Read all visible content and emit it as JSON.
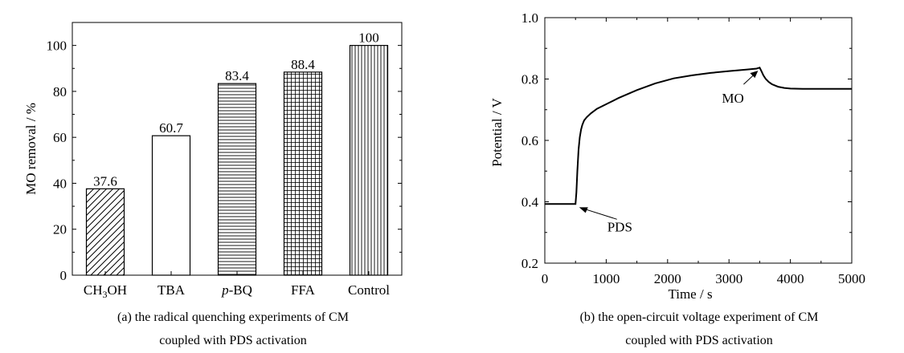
{
  "chart_data": [
    {
      "type": "bar",
      "panel_caption_line1": "(a) the radical quenching experiments of CM",
      "panel_caption_line2": "coupled with PDS activation",
      "ylabel": "MO removal / %",
      "xlabel": "",
      "ylim": [
        0,
        110
      ],
      "yticks": [
        0,
        20,
        40,
        60,
        80,
        100
      ],
      "categories": [
        "CH3OH",
        "TBA",
        "p-BQ",
        "FFA",
        "Control"
      ],
      "category_labels": [
        {
          "main": "CH",
          "sub": "3",
          "rest": "OH"
        },
        {
          "main": "TBA"
        },
        {
          "italic": "p",
          "rest": "-BQ"
        },
        {
          "main": "FFA"
        },
        {
          "main": "Control"
        }
      ],
      "values": [
        37.6,
        60.7,
        83.4,
        88.4,
        100
      ],
      "value_labels": [
        "37.6",
        "60.7",
        "83.4",
        "88.4",
        "100"
      ],
      "patterns": [
        "diagonal-hatch",
        "none",
        "horizontal-lines",
        "grid",
        "vertical-lines"
      ],
      "grid": false
    },
    {
      "type": "line",
      "panel_caption_line1": "(b) the open-circuit voltage experiment of CM",
      "panel_caption_line2": "coupled with PDS activation",
      "xlabel": "Time / s",
      "ylabel": "Potential / V",
      "xlim": [
        0,
        5000
      ],
      "ylim": [
        0.2,
        1.0
      ],
      "xticks": [
        0,
        1000,
        2000,
        3000,
        4000,
        5000
      ],
      "yticks": [
        0.2,
        0.4,
        0.6,
        0.8,
        1.0
      ],
      "ytick_labels": [
        "0.2",
        "0.4",
        "0.6",
        "0.8",
        "1.0"
      ],
      "series": [
        {
          "x": [
            0,
            250,
            500,
            515,
            530,
            550,
            570,
            590,
            610,
            640,
            680,
            750,
            850,
            1000,
            1200,
            1500,
            1800,
            2100,
            2400,
            2700,
            3000,
            3300,
            3450,
            3500,
            3530,
            3560,
            3600,
            3650,
            3700,
            3800,
            3900,
            4000,
            4200,
            4500,
            4800,
            5000
          ],
          "y": [
            0.393,
            0.393,
            0.393,
            0.43,
            0.5,
            0.57,
            0.61,
            0.635,
            0.65,
            0.665,
            0.675,
            0.688,
            0.703,
            0.718,
            0.738,
            0.764,
            0.786,
            0.802,
            0.812,
            0.82,
            0.826,
            0.831,
            0.834,
            0.837,
            0.825,
            0.812,
            0.8,
            0.79,
            0.783,
            0.775,
            0.771,
            0.769,
            0.768,
            0.768,
            0.768,
            0.768
          ]
        }
      ],
      "annotations": [
        {
          "text": "PDS",
          "x": 520,
          "y": 0.39
        },
        {
          "text": "MO",
          "x": 3500,
          "y": 0.835
        }
      ],
      "grid": false
    }
  ]
}
